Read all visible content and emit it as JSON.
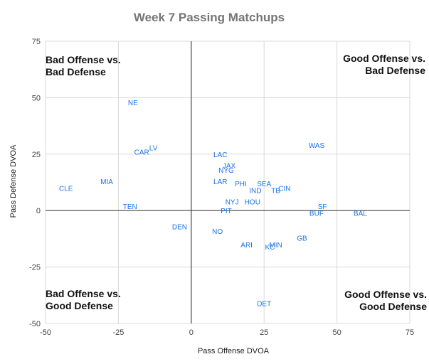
{
  "chart_data": {
    "type": "scatter",
    "title": "Week 7 Passing Matchups",
    "xlabel": "Pass Offense DVOA",
    "ylabel": "Pass Defense DVOA",
    "xlim": [
      -50,
      75
    ],
    "ylim": [
      -50,
      75
    ],
    "xticks": [
      "-50",
      "-25",
      "0",
      "25",
      "50",
      "75"
    ],
    "yticks": [
      "75",
      "50",
      "25",
      "0",
      "-25",
      "-50"
    ],
    "grid": true,
    "accent_color": "#1a73e8",
    "quadrant_labels": {
      "top_left": [
        "Bad Offense vs.",
        "Bad Defense"
      ],
      "top_right": [
        "Good Offense vs.",
        "Bad Defense"
      ],
      "bottom_left": [
        "Bad Offense vs.",
        "Good Defense"
      ],
      "bottom_right": [
        "Good Offense vs.",
        "Good Defense"
      ]
    },
    "points": [
      {
        "label": "NE",
        "x": -20,
        "y": 48
      },
      {
        "label": "LV",
        "x": -13,
        "y": 28
      },
      {
        "label": "CAR",
        "x": -17,
        "y": 26
      },
      {
        "label": "CLE",
        "x": -43,
        "y": 10
      },
      {
        "label": "MIA",
        "x": -29,
        "y": 13
      },
      {
        "label": "TEN",
        "x": -21,
        "y": 2
      },
      {
        "label": "DEN",
        "x": -4,
        "y": -7
      },
      {
        "label": "LAC",
        "x": 10,
        "y": 25
      },
      {
        "label": "JAX",
        "x": 13,
        "y": 20
      },
      {
        "label": "NYG",
        "x": 12,
        "y": 18
      },
      {
        "label": "LAR",
        "x": 10,
        "y": 13
      },
      {
        "label": "PHI",
        "x": 17,
        "y": 12
      },
      {
        "label": "SEA",
        "x": 25,
        "y": 12
      },
      {
        "label": "IND",
        "x": 22,
        "y": 9
      },
      {
        "label": "TB",
        "x": 29,
        "y": 9
      },
      {
        "label": "CIN",
        "x": 32,
        "y": 10
      },
      {
        "label": "NYJ",
        "x": 14,
        "y": 4
      },
      {
        "label": "HOU",
        "x": 21,
        "y": 4
      },
      {
        "label": "PIT",
        "x": 12,
        "y": 0
      },
      {
        "label": "NO",
        "x": 9,
        "y": -9
      },
      {
        "label": "ARI",
        "x": 19,
        "y": -15
      },
      {
        "label": "MIN",
        "x": 29,
        "y": -15
      },
      {
        "label": "KC",
        "x": 27,
        "y": -16
      },
      {
        "label": "GB",
        "x": 38,
        "y": -12
      },
      {
        "label": "WAS",
        "x": 43,
        "y": 29
      },
      {
        "label": "SF",
        "x": 45,
        "y": 2
      },
      {
        "label": "BUF",
        "x": 43,
        "y": -1
      },
      {
        "label": "BAL",
        "x": 58,
        "y": -1
      },
      {
        "label": "DET",
        "x": 25,
        "y": -41
      }
    ]
  }
}
